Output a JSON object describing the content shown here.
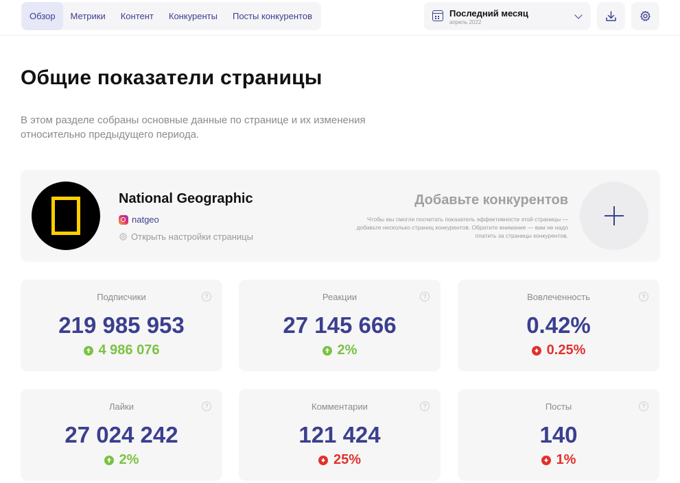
{
  "nav": {
    "tabs": [
      {
        "label": "Обзор",
        "active": true
      },
      {
        "label": "Метрики"
      },
      {
        "label": "Контент"
      },
      {
        "label": "Конкуренты"
      },
      {
        "label": "Посты конкурентов"
      }
    ],
    "period": {
      "title": "Последний месяц",
      "subtitle": "апрель 2022",
      "icon": "calendar-icon"
    },
    "download_icon": "download-icon",
    "settings_icon": "gear-icon"
  },
  "header": {
    "title": "Общие показатели страницы",
    "description": "В этом разделе собраны основные данные по странице и их изменения относительно предыдущего периода."
  },
  "profile": {
    "name": "National Geographic",
    "handle": "natgeo",
    "platform_icon": "instagram-icon",
    "settings_link": "Открыть настройки страницы"
  },
  "competitors": {
    "title": "Добавьте конкурентов",
    "description": "Чтобы мы смогли посчитать показатель эффективности этой страницы — добавьте несколько страниц конкурентов. Обратите внимание — вам не надо платить за страницы конкурентов."
  },
  "stats": [
    {
      "label": "Подписчики",
      "value": "219 985 953",
      "delta": "4 986 076",
      "trend": "up"
    },
    {
      "label": "Реакции",
      "value": "27 145 666",
      "delta": "2%",
      "trend": "up"
    },
    {
      "label": "Вовлеченность",
      "value": "0.42%",
      "delta": "0.25%",
      "trend": "down"
    },
    {
      "label": "Лайки",
      "value": "27 024 242",
      "delta": "2%",
      "trend": "up"
    },
    {
      "label": "Комментарии",
      "value": "121 424",
      "delta": "25%",
      "trend": "down"
    },
    {
      "label": "Посты",
      "value": "140",
      "delta": "1%",
      "trend": "down"
    }
  ],
  "help_glyph": "?",
  "colors": {
    "accent": "#3b3f8f",
    "positive": "#7cc242",
    "negative": "#e0322e",
    "card": "#f6f6f6"
  }
}
